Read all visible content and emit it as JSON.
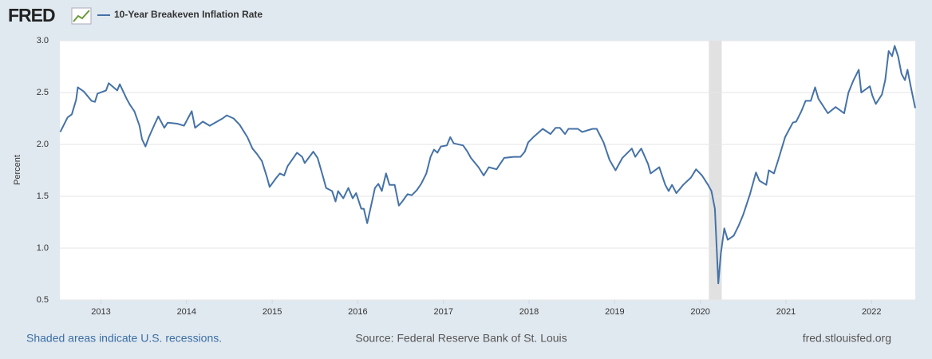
{
  "logo": "FRED",
  "chart_data": {
    "type": "line",
    "y_label": "Percent",
    "note": "Shaded areas indicate U.S. recessions.",
    "source": "Source: Federal Reserve Bank of St. Louis",
    "site": "fred.stlouisfed.org",
    "xlim": [
      2012.52,
      2022.51
    ],
    "xticks": [
      2013,
      2014,
      2015,
      2016,
      2017,
      2018,
      2019,
      2020,
      2021,
      2022
    ],
    "ylim": [
      0.5,
      3.0
    ],
    "yticks": [
      0.5,
      {
        "value": 1.0,
        "label": "1.0"
      },
      1.5,
      {
        "value": 2.0,
        "label": "2.0"
      },
      2.5,
      {
        "value": 3.0,
        "label": "3.0"
      }
    ],
    "grid": true,
    "legend": "top-left",
    "recessions": [
      {
        "start": 2020.1,
        "end": 2020.25
      }
    ],
    "x": [
      2012.525,
      2012.61,
      2012.66,
      2012.71,
      2012.73,
      2012.8,
      2012.89,
      2012.93,
      2012.96,
      2013.06,
      2013.09,
      2013.19,
      2013.22,
      2013.3,
      2013.34,
      2013.39,
      2013.45,
      2013.48,
      2013.52,
      2013.56,
      2013.63,
      2013.67,
      2013.74,
      2013.78,
      2013.89,
      2013.97,
      2014.06,
      2014.1,
      2014.19,
      2014.27,
      2014.42,
      2014.47,
      2014.55,
      2014.62,
      2014.71,
      2014.77,
      2014.82,
      2014.88,
      2014.94,
      2014.97,
      2015.05,
      2015.09,
      2015.14,
      2015.18,
      2015.29,
      2015.35,
      2015.38,
      2015.48,
      2015.53,
      2015.59,
      2015.63,
      2015.7,
      2015.74,
      2015.77,
      2015.83,
      2015.89,
      2015.94,
      2015.98,
      2016.04,
      2016.07,
      2016.11,
      2016.15,
      2016.2,
      2016.24,
      2016.28,
      2016.33,
      2016.37,
      2016.43,
      2016.48,
      2016.52,
      2016.58,
      2016.63,
      2016.69,
      2016.74,
      2016.8,
      2016.85,
      2016.89,
      2016.93,
      2016.97,
      2017.04,
      2017.08,
      2017.12,
      2017.23,
      2017.28,
      2017.32,
      2017.41,
      2017.47,
      2017.53,
      2017.62,
      2017.66,
      2017.71,
      2017.82,
      2017.9,
      2017.95,
      2017.99,
      2018.05,
      2018.16,
      2018.25,
      2018.31,
      2018.36,
      2018.42,
      2018.46,
      2018.57,
      2018.62,
      2018.74,
      2018.79,
      2018.87,
      2018.94,
      2019.01,
      2019.09,
      2019.2,
      2019.24,
      2019.31,
      2019.39,
      2019.42,
      2019.52,
      2019.59,
      2019.63,
      2019.67,
      2019.72,
      2019.8,
      2019.89,
      2019.95,
      2020.02,
      2020.09,
      2020.13,
      2020.17,
      2020.21,
      2020.24,
      2020.28,
      2020.32,
      2020.39,
      2020.45,
      2020.5,
      2020.58,
      2020.65,
      2020.69,
      2020.77,
      2020.8,
      2020.86,
      2020.91,
      2020.99,
      2021.08,
      2021.12,
      2021.18,
      2021.23,
      2021.29,
      2021.34,
      2021.38,
      2021.49,
      2021.58,
      2021.68,
      2021.73,
      2021.79,
      2021.85,
      2021.88,
      2021.98,
      2022.01,
      2022.05,
      2022.12,
      2022.16,
      2022.2,
      2022.24,
      2022.27,
      2022.31,
      2022.35,
      2022.39,
      2022.42,
      2022.46,
      2022.51
    ],
    "series": [
      {
        "name": "10-Year Breakeven Inflation Rate",
        "color": "#4572a7",
        "values": [
          2.12,
          2.26,
          2.29,
          2.43,
          2.55,
          2.51,
          2.42,
          2.41,
          2.49,
          2.52,
          2.59,
          2.52,
          2.58,
          2.44,
          2.38,
          2.32,
          2.18,
          2.05,
          1.98,
          2.07,
          2.2,
          2.27,
          2.16,
          2.21,
          2.2,
          2.18,
          2.32,
          2.16,
          2.22,
          2.18,
          2.25,
          2.28,
          2.25,
          2.19,
          2.07,
          1.96,
          1.91,
          1.84,
          1.68,
          1.59,
          1.68,
          1.72,
          1.7,
          1.79,
          1.92,
          1.88,
          1.82,
          1.93,
          1.87,
          1.7,
          1.58,
          1.55,
          1.45,
          1.55,
          1.48,
          1.58,
          1.48,
          1.53,
          1.38,
          1.38,
          1.24,
          1.39,
          1.58,
          1.62,
          1.55,
          1.72,
          1.61,
          1.61,
          1.41,
          1.45,
          1.52,
          1.51,
          1.56,
          1.62,
          1.72,
          1.88,
          1.95,
          1.92,
          1.98,
          1.99,
          2.07,
          2.01,
          1.99,
          1.93,
          1.87,
          1.78,
          1.7,
          1.78,
          1.76,
          1.81,
          1.87,
          1.88,
          1.88,
          1.93,
          2.02,
          2.07,
          2.15,
          2.1,
          2.16,
          2.16,
          2.1,
          2.15,
          2.15,
          2.12,
          2.15,
          2.15,
          2.02,
          1.85,
          1.75,
          1.87,
          1.96,
          1.88,
          1.96,
          1.81,
          1.72,
          1.78,
          1.61,
          1.55,
          1.61,
          1.53,
          1.61,
          1.68,
          1.76,
          1.7,
          1.61,
          1.55,
          1.38,
          0.66,
          0.95,
          1.19,
          1.08,
          1.12,
          1.22,
          1.32,
          1.52,
          1.73,
          1.65,
          1.61,
          1.75,
          1.72,
          1.85,
          2.07,
          2.21,
          2.22,
          2.32,
          2.42,
          2.42,
          2.55,
          2.44,
          2.3,
          2.36,
          2.3,
          2.5,
          2.62,
          2.72,
          2.5,
          2.56,
          2.47,
          2.39,
          2.48,
          2.62,
          2.9,
          2.85,
          2.95,
          2.85,
          2.68,
          2.62,
          2.72,
          2.55,
          2.35
        ]
      }
    ]
  }
}
